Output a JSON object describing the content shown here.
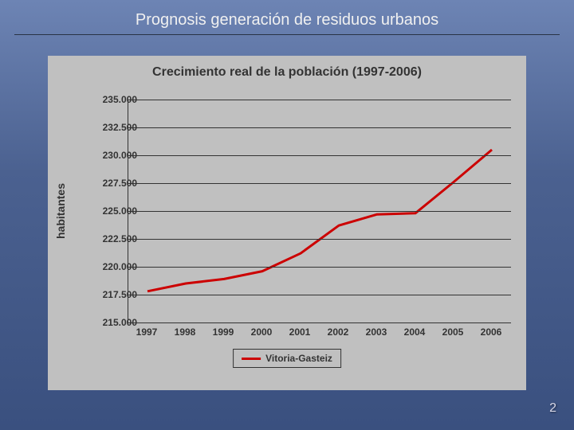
{
  "slide": {
    "title": "Prognosis generación de residuos urbanos",
    "page_number": "2",
    "background_gradient_top": "#6d84b4",
    "background_gradient_bottom": "#3a507f"
  },
  "chart": {
    "type": "line",
    "title": "Crecimiento real de la población (1997-2006)",
    "title_fontsize": 16,
    "title_color": "#333333",
    "background_color": "#c0c0c0",
    "plot_background_color": "#c0c0c0",
    "ylabel": "habitantes",
    "ylabel_fontsize": 14,
    "label_color": "#333333",
    "tick_fontsize": 12,
    "tick_fontweight": "bold",
    "x_values": [
      "1997",
      "1998",
      "1999",
      "2000",
      "2001",
      "2002",
      "2003",
      "2004",
      "2005",
      "2006"
    ],
    "y_ticks": [
      "215.000",
      "217.500",
      "220.000",
      "222.500",
      "225.000",
      "227.500",
      "230.000",
      "232.500",
      "235.000"
    ],
    "ylim": [
      215000,
      235000
    ],
    "ytick_step": 2500,
    "grid": true,
    "grid_color": "#333333",
    "series": [
      {
        "name": "Vitoria-Gasteiz",
        "color": "#cc0000",
        "line_width": 3,
        "data": [
          217800,
          218500,
          218900,
          219600,
          221200,
          223700,
          224700,
          224800,
          227600,
          230500
        ]
      }
    ],
    "legend_position": "bottom",
    "legend_border_color": "#333333"
  }
}
